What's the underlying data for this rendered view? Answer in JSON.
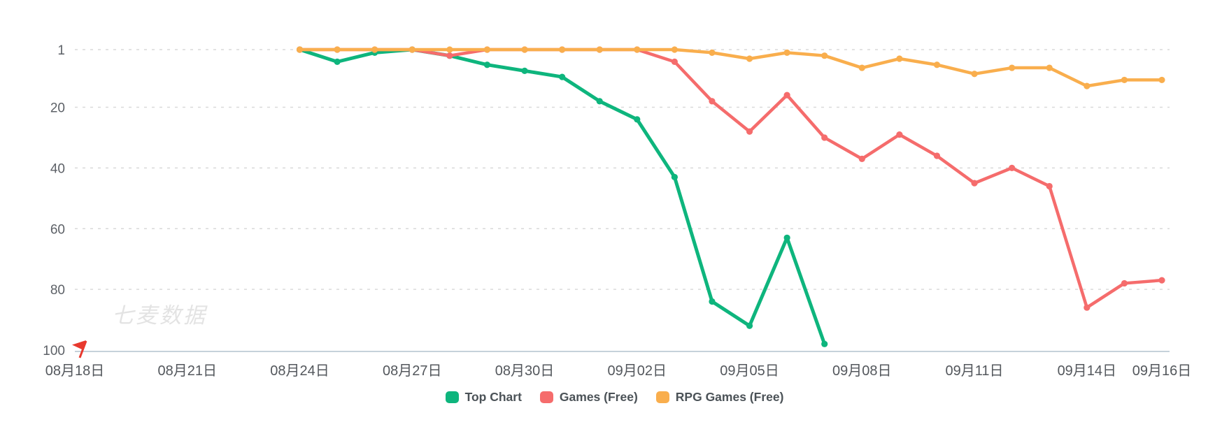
{
  "watermark": "七麦数据",
  "chart_data": {
    "type": "line",
    "title": "",
    "y_axis": {
      "inverted": true,
      "min": 1,
      "max": 100,
      "tick_ranks": [
        1,
        20,
        40,
        60,
        80,
        100
      ],
      "tick_labels": [
        "1",
        "20",
        "40",
        "60",
        "80",
        "100"
      ],
      "gridline_ranks": [
        1,
        20,
        40,
        60,
        80
      ],
      "grid": "dashed-horizontal"
    },
    "x_axis": {
      "tick_labels": [
        "08月18日",
        "08月21日",
        "08月24日",
        "08月27日",
        "08月30日",
        "09月02日",
        "09月05日",
        "09月08日",
        "09月11日",
        "09月14日",
        "09月16日"
      ],
      "tick_day_offsets": [
        0,
        3,
        6,
        9,
        12,
        15,
        18,
        21,
        24,
        27,
        29
      ],
      "total_days": 29
    },
    "dates": [
      "08月24日",
      "08月25日",
      "08月26日",
      "08月27日",
      "08月28日",
      "08月29日",
      "08月30日",
      "08月31日",
      "09月01日",
      "09月02日",
      "09月03日",
      "09月04日",
      "09月05日",
      "09月06日",
      "09月07日",
      "09月08日",
      "09月09日",
      "09月10日",
      "09月11日",
      "09月12日",
      "09月13日",
      "09月14日",
      "09月15日",
      "09月16日"
    ],
    "series_start_day_offset": 6,
    "series": [
      {
        "name": "Top Chart",
        "color": "#0eb57d",
        "ranks": [
          1,
          5,
          2,
          1,
          3,
          6,
          8,
          10,
          18,
          24,
          43,
          84,
          92,
          63,
          98
        ]
      },
      {
        "name": "Games (Free)",
        "color": "#f56c6c",
        "ranks": [
          1,
          1,
          1,
          1,
          3,
          1,
          1,
          1,
          1,
          1,
          5,
          18,
          28,
          16,
          30,
          37,
          29,
          36,
          45,
          40,
          46,
          86,
          78,
          77
        ]
      },
      {
        "name": "RPG Games (Free)",
        "color": "#f9ae4d",
        "ranks": [
          1,
          1,
          1,
          1,
          1,
          1,
          1,
          1,
          1,
          1,
          1,
          2,
          4,
          2,
          3,
          7,
          4,
          6,
          9,
          7,
          7,
          13,
          11,
          11
        ]
      }
    ],
    "legend_position": "bottom",
    "event_flag": {
      "day_offset": 0,
      "color": "#e8392e"
    }
  }
}
